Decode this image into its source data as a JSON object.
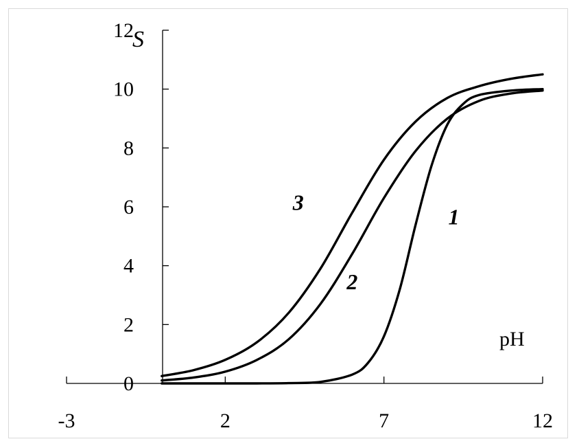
{
  "chart_data": {
    "type": "line",
    "xlabel": "pH",
    "ylabel": "S",
    "xlim": [
      -3,
      12
    ],
    "ylim": [
      0,
      12
    ],
    "x_ticks": [
      -3,
      2,
      7,
      12
    ],
    "y_ticks": [
      0,
      2,
      4,
      6,
      8,
      10,
      12
    ],
    "grid": false,
    "legend": "none",
    "line_color": "#000000",
    "series": [
      {
        "name": "1",
        "x": [
          0,
          1,
          2,
          3,
          4,
          5,
          6,
          6.5,
          7,
          7.5,
          8,
          8.5,
          9,
          9.5,
          10,
          11,
          12
        ],
        "y": [
          0,
          0,
          0,
          0,
          0.01,
          0.05,
          0.3,
          0.7,
          1.6,
          3.2,
          5.4,
          7.4,
          8.8,
          9.5,
          9.8,
          9.95,
          10.0
        ]
      },
      {
        "name": "2",
        "x": [
          0,
          1,
          2,
          3,
          4,
          5,
          6,
          7,
          8,
          9,
          10,
          11,
          12
        ],
        "y": [
          0.1,
          0.2,
          0.4,
          0.8,
          1.5,
          2.7,
          4.4,
          6.3,
          7.9,
          9.0,
          9.6,
          9.85,
          9.95
        ]
      },
      {
        "name": "3",
        "x": [
          0,
          1,
          2,
          3,
          4,
          5,
          6,
          7,
          8,
          9,
          10,
          11,
          12
        ],
        "y": [
          0.25,
          0.45,
          0.8,
          1.4,
          2.4,
          3.9,
          5.8,
          7.6,
          8.9,
          9.7,
          10.1,
          10.35,
          10.5
        ]
      }
    ],
    "curve_labels": [
      {
        "text": "1",
        "x": 9.2,
        "y": 5.4
      },
      {
        "text": "2",
        "x": 6.0,
        "y": 3.2
      },
      {
        "text": "3",
        "x": 4.3,
        "y": 5.9
      }
    ]
  }
}
